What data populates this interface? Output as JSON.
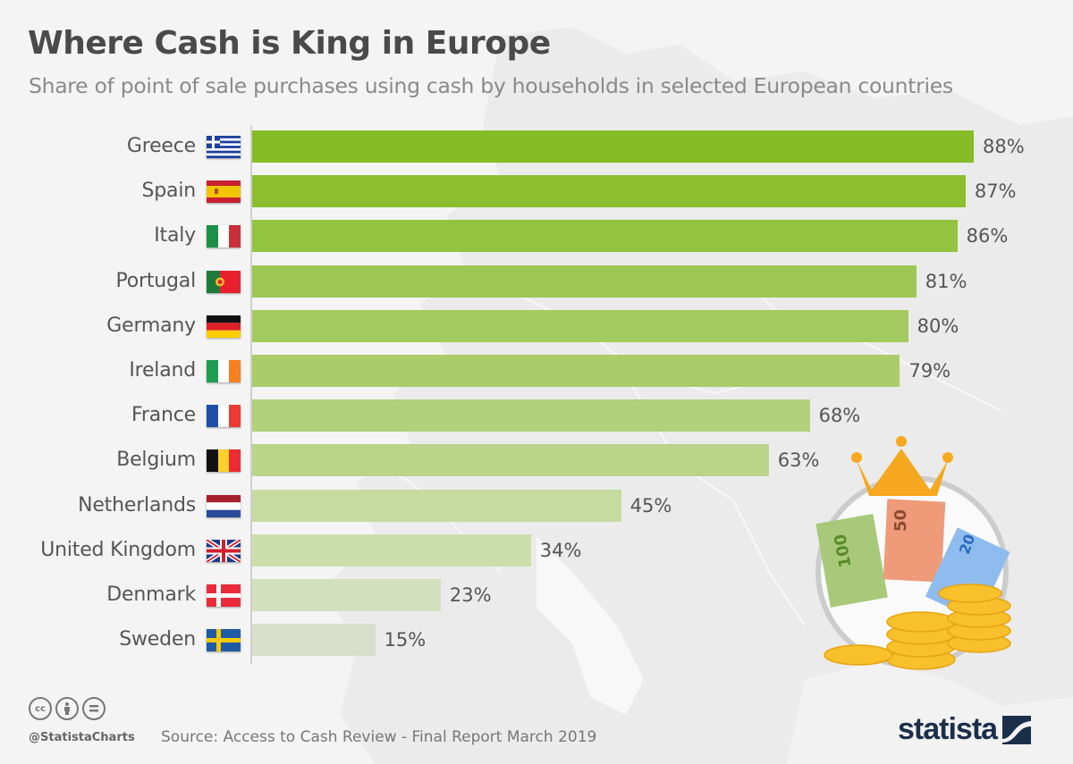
{
  "header": {
    "title": "Where Cash is King in Europe",
    "subtitle": "Share of point of sale purchases using cash by households in selected European countries"
  },
  "footer": {
    "license_icons": [
      "cc-icon",
      "attribution-icon",
      "no-derivatives-icon"
    ],
    "handle": "@StatistaCharts",
    "source": "Source: Access to Cash Review - Final Report March 2019",
    "logo": "statista"
  },
  "colors": {
    "bar_gradient": [
      "#86bc25",
      "#8bbf2f",
      "#93c43f",
      "#9cc752",
      "#a3ca5e",
      "#a9cd69",
      "#b2d17c",
      "#bad58a",
      "#c5dba0",
      "#ccdfab",
      "#d3e0bd",
      "#d7dfc9"
    ],
    "background": "#f4f4f4",
    "text": "#555555",
    "logo": "#1b2f4a"
  },
  "rows": [
    {
      "country": "Greece",
      "flag": "greece-flag",
      "value": 88,
      "label": "88%"
    },
    {
      "country": "Spain",
      "flag": "spain-flag",
      "value": 87,
      "label": "87%"
    },
    {
      "country": "Italy",
      "flag": "italy-flag",
      "value": 86,
      "label": "86%"
    },
    {
      "country": "Portugal",
      "flag": "portugal-flag",
      "value": 81,
      "label": "81%"
    },
    {
      "country": "Germany",
      "flag": "germany-flag",
      "value": 80,
      "label": "80%"
    },
    {
      "country": "Ireland",
      "flag": "ireland-flag",
      "value": 79,
      "label": "79%"
    },
    {
      "country": "France",
      "flag": "france-flag",
      "value": 68,
      "label": "68%"
    },
    {
      "country": "Belgium",
      "flag": "belgium-flag",
      "value": 63,
      "label": "63%"
    },
    {
      "country": "Netherlands",
      "flag": "netherlands-flag",
      "value": 45,
      "label": "45%"
    },
    {
      "country": "United Kingdom",
      "flag": "uk-flag",
      "value": 34,
      "label": "34%"
    },
    {
      "country": "Denmark",
      "flag": "denmark-flag",
      "value": 23,
      "label": "23%"
    },
    {
      "country": "Sweden",
      "flag": "sweden-flag",
      "value": 15,
      "label": "15%"
    }
  ],
  "illustration": {
    "notes": [
      "100",
      "50",
      "20"
    ]
  },
  "chart_data": {
    "type": "bar",
    "orientation": "horizontal",
    "title": "Where Cash is King in Europe",
    "subtitle": "Share of point of sale purchases using cash by households in selected European countries",
    "categories": [
      "Greece",
      "Spain",
      "Italy",
      "Portugal",
      "Germany",
      "Ireland",
      "France",
      "Belgium",
      "Netherlands",
      "United Kingdom",
      "Denmark",
      "Sweden"
    ],
    "values": [
      88,
      87,
      86,
      81,
      80,
      79,
      68,
      63,
      45,
      34,
      23,
      15
    ],
    "unit": "%",
    "data_labels": [
      "88%",
      "87%",
      "86%",
      "81%",
      "80%",
      "79%",
      "68%",
      "63%",
      "45%",
      "34%",
      "23%",
      "15%"
    ],
    "xlabel": "",
    "ylabel": "",
    "xlim": [
      0,
      100
    ],
    "grid": false,
    "legend": null,
    "source": "Access to Cash Review - Final Report March 2019"
  }
}
